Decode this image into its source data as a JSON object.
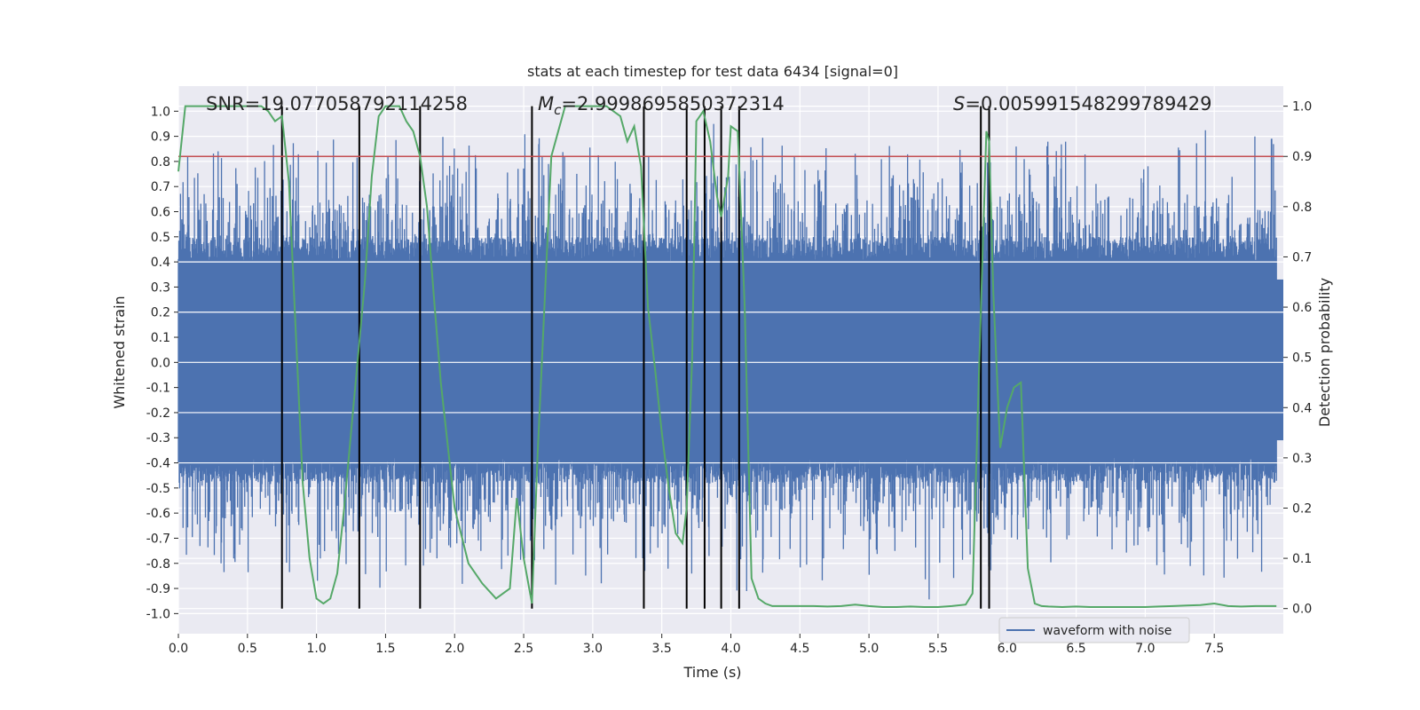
{
  "chart_data": {
    "type": "line",
    "title": "stats at each timestep for test data 6434 [signal=0]",
    "xlabel": "Time (s)",
    "ylabel": "Whitened strain",
    "y2label": "Detection probability",
    "xlim": [
      0.0,
      8.0
    ],
    "ylim": [
      -1.08,
      1.1
    ],
    "y2lim": [
      -0.05,
      1.04
    ],
    "x_ticks": [
      "0.0",
      "0.5",
      "1.0",
      "1.5",
      "2.0",
      "2.5",
      "3.0",
      "3.5",
      "4.0",
      "4.5",
      "5.0",
      "5.5",
      "6.0",
      "6.5",
      "7.0",
      "7.5"
    ],
    "y_ticks": [
      "1.0",
      "0.9",
      "0.8",
      "0.7",
      "0.6",
      "0.5",
      "0.4",
      "0.3",
      "0.2",
      "0.1",
      "0.0",
      "-0.1",
      "-0.2",
      "-0.3",
      "-0.4",
      "-0.5",
      "-0.6",
      "-0.7",
      "-0.8",
      "-0.9",
      "-1.0"
    ],
    "y2_ticks": [
      "1.0",
      "0.9",
      "0.8",
      "0.7",
      "0.6",
      "0.5",
      "0.4",
      "0.3",
      "0.2",
      "0.1",
      "0.0"
    ],
    "grid": true,
    "legend": {
      "position": "lower-right",
      "entries": [
        "waveform with noise"
      ]
    },
    "annotations": {
      "snr": "SNR=19.077058792114258",
      "mc_symbol": "M",
      "mc_sub": "c",
      "mc_value": "=2.9998695850372314",
      "s_symbol": "S",
      "s_value": "=0.005991548299789429"
    },
    "threshold_y2": 0.9,
    "vertical_lines_x": [
      0.75,
      1.31,
      1.75,
      2.56,
      3.37,
      3.68,
      3.81,
      3.93,
      4.06,
      5.81,
      5.87
    ],
    "series": [
      {
        "name": "waveform with noise",
        "type": "noise",
        "x_range": [
          0.0,
          8.0
        ],
        "core_amplitude": [
          -0.38,
          0.4
        ]
      },
      {
        "type": "line",
        "x": [
          0.0,
          0.05,
          0.1,
          0.2,
          0.3,
          0.4,
          0.5,
          0.6,
          0.65,
          0.7,
          0.75,
          0.8,
          0.85,
          0.9,
          0.95,
          1.0,
          1.05,
          1.1,
          1.15,
          1.2,
          1.25,
          1.3,
          1.35,
          1.4,
          1.45,
          1.5,
          1.55,
          1.6,
          1.65,
          1.7,
          1.75,
          1.8,
          1.85,
          1.9,
          2.0,
          2.1,
          2.2,
          2.3,
          2.4,
          2.45,
          2.5,
          2.56,
          2.6,
          2.65,
          2.7,
          2.8,
          2.9,
          3.0,
          3.1,
          3.2,
          3.25,
          3.3,
          3.35,
          3.4,
          3.45,
          3.5,
          3.55,
          3.6,
          3.65,
          3.68,
          3.72,
          3.75,
          3.8,
          3.85,
          3.9,
          3.93,
          3.98,
          4.0,
          4.05,
          4.1,
          4.15,
          4.2,
          4.25,
          4.3,
          4.4,
          4.5,
          4.6,
          4.7,
          4.8,
          4.9,
          5.0,
          5.1,
          5.2,
          5.3,
          5.4,
          5.5,
          5.6,
          5.7,
          5.75,
          5.8,
          5.85,
          5.87,
          5.9,
          5.95,
          6.0,
          6.05,
          6.1,
          6.15,
          6.2,
          6.25,
          6.3,
          6.4,
          6.5,
          6.6,
          6.7,
          6.8,
          6.9,
          7.0,
          7.1,
          7.2,
          7.3,
          7.4,
          7.5,
          7.6,
          7.7,
          7.8,
          7.9,
          7.95
        ],
        "values": [
          0.87,
          1.0,
          1.0,
          1.0,
          1.0,
          1.0,
          1.0,
          1.0,
          0.99,
          0.97,
          0.98,
          0.85,
          0.55,
          0.25,
          0.1,
          0.02,
          0.01,
          0.02,
          0.07,
          0.2,
          0.35,
          0.5,
          0.65,
          0.86,
          0.98,
          1.0,
          1.0,
          1.0,
          0.97,
          0.95,
          0.9,
          0.8,
          0.62,
          0.45,
          0.2,
          0.09,
          0.05,
          0.02,
          0.04,
          0.22,
          0.1,
          0.01,
          0.3,
          0.6,
          0.9,
          1.0,
          1.0,
          1.0,
          1.0,
          0.98,
          0.93,
          0.96,
          0.88,
          0.6,
          0.48,
          0.35,
          0.24,
          0.15,
          0.13,
          0.2,
          0.5,
          0.97,
          0.99,
          0.93,
          0.82,
          0.78,
          0.86,
          0.96,
          0.95,
          0.6,
          0.06,
          0.02,
          0.01,
          0.005,
          0.005,
          0.005,
          0.005,
          0.004,
          0.005,
          0.008,
          0.005,
          0.003,
          0.003,
          0.004,
          0.003,
          0.003,
          0.005,
          0.008,
          0.03,
          0.5,
          0.95,
          0.93,
          0.63,
          0.32,
          0.4,
          0.44,
          0.45,
          0.08,
          0.01,
          0.005,
          0.004,
          0.003,
          0.004,
          0.003,
          0.003,
          0.003,
          0.003,
          0.003,
          0.004,
          0.005,
          0.006,
          0.007,
          0.01,
          0.005,
          0.004,
          0.005,
          0.005,
          0.005
        ]
      }
    ],
    "colors": {
      "plot_bg": "#eaeaf2",
      "grid": "#ffffff",
      "waveform": "#4c72b0",
      "probability": "#55a868",
      "threshold": "#c44e52",
      "vlines": "#000000"
    }
  }
}
